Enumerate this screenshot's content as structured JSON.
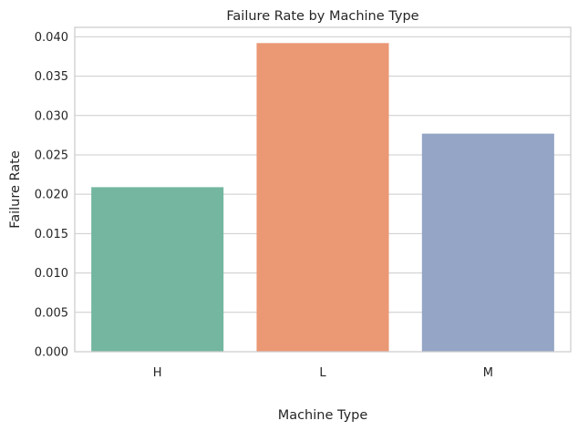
{
  "chart_data": {
    "type": "bar",
    "title": "Failure Rate by Machine Type",
    "xlabel": "Machine Type",
    "ylabel": "Failure Rate",
    "categories": [
      "H",
      "L",
      "M"
    ],
    "values": [
      0.0209,
      0.0392,
      0.0277
    ],
    "ylim": [
      0,
      0.0412
    ],
    "yticks": [
      0.0,
      0.005,
      0.01,
      0.015,
      0.02,
      0.025,
      0.03,
      0.035,
      0.04
    ],
    "ytick_labels": [
      "0.000",
      "0.005",
      "0.010",
      "0.015",
      "0.020",
      "0.025",
      "0.030",
      "0.035",
      "0.040"
    ],
    "colors": [
      "#74b6a0",
      "#eb9874",
      "#94a5c5"
    ],
    "grid": "horizontal",
    "legend": "none"
  }
}
